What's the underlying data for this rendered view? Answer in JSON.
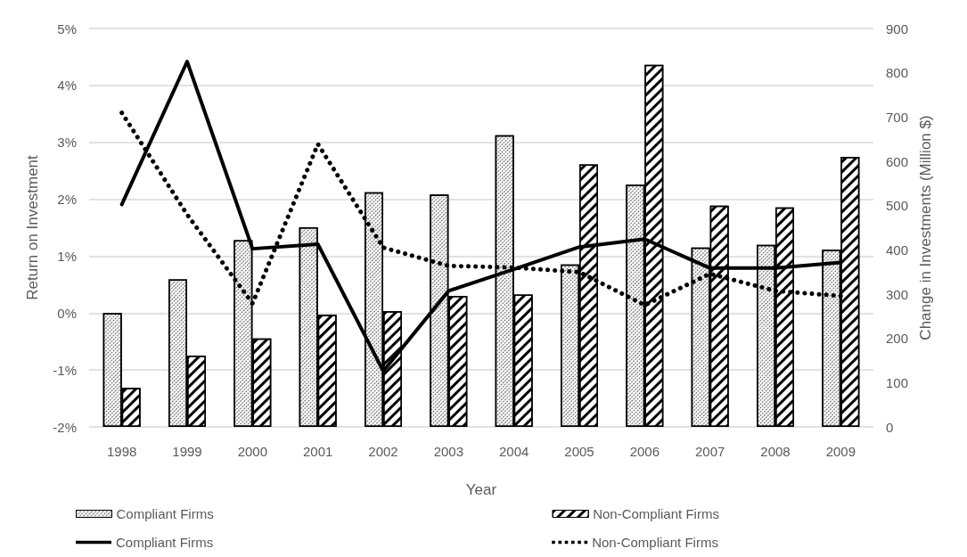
{
  "chart_data": {
    "type": "bar",
    "xlabel": "Year",
    "ylabel": "Return on Investment",
    "y2label": "Change in Investments (Million $)",
    "categories": [
      "1998",
      "1999",
      "2000",
      "2001",
      "2002",
      "2003",
      "2004",
      "2005",
      "2006",
      "2007",
      "2008",
      "2009"
    ],
    "series": [
      {
        "name": "Compliant Firms",
        "axis": "y2",
        "color": "#ffffff",
        "values": [
          257,
          333,
          422,
          451,
          530,
          525,
          659,
          367,
          547,
          405,
          411,
          400
        ]
      },
      {
        "name": "Non-Compliant Firms",
        "axis": "y2",
        "color": "#ffffff",
        "values": [
          88,
          161,
          200,
          253,
          261,
          296,
          299,
          593,
          818,
          500,
          496,
          610
        ]
      },
      {
        "name": "Compliant Firms",
        "type": "line",
        "axis": "y",
        "color": "#000000",
        "line_style": "solid",
        "values": [
          1.91,
          4.42,
          1.13,
          1.21,
          -1.02,
          0.39,
          0.77,
          1.16,
          1.3,
          0.79,
          0.79,
          0.89
        ]
      },
      {
        "name": "Non-Compliant Firms",
        "type": "line",
        "axis": "y",
        "color": "#000000",
        "line_style": "dotted",
        "values": [
          3.52,
          1.73,
          0.17,
          2.97,
          1.15,
          0.83,
          0.8,
          0.72,
          0.14,
          0.69,
          0.39,
          0.3
        ]
      }
    ],
    "ylim": [
      -2,
      5
    ],
    "yticks": [
      {
        "value": -2,
        "label": "-2%"
      },
      {
        "value": -1,
        "label": "-1%"
      },
      {
        "value": 0,
        "label": "0%"
      },
      {
        "value": 1,
        "label": "1%"
      },
      {
        "value": 2,
        "label": "2%"
      },
      {
        "value": 3,
        "label": "3%"
      },
      {
        "value": 4,
        "label": "4%"
      },
      {
        "value": 5,
        "label": "5%"
      }
    ],
    "y2lim": [
      0,
      900
    ],
    "y2ticks": [
      0,
      100,
      200,
      300,
      400,
      500,
      600,
      700,
      800,
      900
    ],
    "grid": "y",
    "legend": "bottom",
    "marker": "none"
  }
}
